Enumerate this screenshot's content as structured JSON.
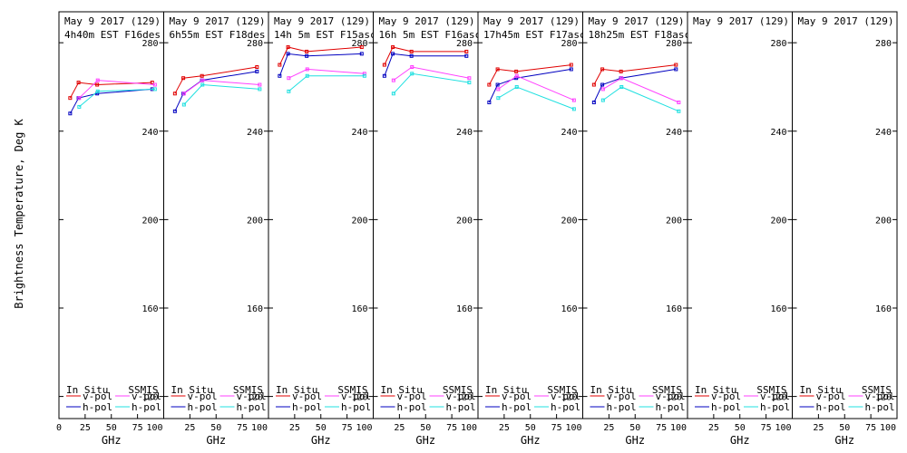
{
  "figure": {
    "ylabel": "Brightness Temperature, Deg K",
    "xlabel": "GHz"
  },
  "legend": {
    "in_situ_title": "In Situ",
    "ssmis_title": "SSMIS",
    "vpol_label": "v-pol",
    "hpol_label": "h-pol"
  },
  "colors": {
    "in_situ_v": "#e00000",
    "in_situ_h": "#0000c0",
    "ssmis_v": "#ff40ff",
    "ssmis_h": "#20e0e0",
    "axis": "#000000"
  },
  "chart_data": [
    {
      "type": "line",
      "title": "May 9 2017 (129)",
      "subtitle": "4h40m EST F16des",
      "xlim": [
        0,
        100
      ],
      "ylim": [
        110,
        294
      ],
      "xticks": [
        0,
        25,
        50,
        75,
        100
      ],
      "yticks": [
        120,
        160,
        200,
        240,
        280
      ],
      "series": [
        {
          "key": "in_situ_v",
          "x": [
            10.7,
            18.7,
            36.5,
            89
          ],
          "y": [
            255,
            262,
            261,
            262
          ]
        },
        {
          "key": "in_situ_h",
          "x": [
            10.7,
            18.7,
            36.5,
            89
          ],
          "y": [
            248,
            255,
            257,
            259
          ]
        },
        {
          "key": "ssmis_v",
          "x": [
            19.35,
            37,
            91.65
          ],
          "y": [
            255,
            263,
            261
          ]
        },
        {
          "key": "ssmis_h",
          "x": [
            19.35,
            37,
            91.65
          ],
          "y": [
            251,
            258,
            259
          ]
        }
      ]
    },
    {
      "type": "line",
      "title": "May 9 2017 (129)",
      "subtitle": "6h55m EST F18des",
      "xlim": [
        0,
        100
      ],
      "ylim": [
        110,
        294
      ],
      "xticks": [
        0,
        25,
        50,
        75,
        100
      ],
      "yticks": [
        120,
        160,
        200,
        240,
        280
      ],
      "series": [
        {
          "key": "in_situ_v",
          "x": [
            10.7,
            18.7,
            36.5,
            89
          ],
          "y": [
            257,
            264,
            265,
            269
          ]
        },
        {
          "key": "in_situ_h",
          "x": [
            10.7,
            18.7,
            36.5,
            89
          ],
          "y": [
            249,
            257,
            263,
            267
          ]
        },
        {
          "key": "ssmis_v",
          "x": [
            19.35,
            37,
            91.65
          ],
          "y": [
            257,
            263,
            261
          ]
        },
        {
          "key": "ssmis_h",
          "x": [
            19.35,
            37,
            91.65
          ],
          "y": [
            252,
            261,
            259
          ]
        }
      ]
    },
    {
      "type": "line",
      "title": "May 9 2017 (129)",
      "subtitle": "14h 5m EST F15asc",
      "xlim": [
        0,
        100
      ],
      "ylim": [
        110,
        294
      ],
      "xticks": [
        0,
        25,
        50,
        75,
        100
      ],
      "yticks": [
        120,
        160,
        200,
        240,
        280
      ],
      "series": [
        {
          "key": "in_situ_v",
          "x": [
            10.7,
            18.7,
            36.5,
            89
          ],
          "y": [
            270,
            278,
            276,
            278
          ]
        },
        {
          "key": "in_situ_h",
          "x": [
            10.7,
            18.7,
            36.5,
            89
          ],
          "y": [
            265,
            275,
            274,
            275
          ]
        },
        {
          "key": "ssmis_v",
          "x": [
            19.35,
            37,
            91.65
          ],
          "y": [
            264,
            268,
            266
          ]
        },
        {
          "key": "ssmis_h",
          "x": [
            19.35,
            37,
            91.65
          ],
          "y": [
            258,
            265,
            265
          ]
        }
      ]
    },
    {
      "type": "line",
      "title": "May 9 2017 (129)",
      "subtitle": "16h 5m EST F16asc",
      "xlim": [
        0,
        100
      ],
      "ylim": [
        110,
        294
      ],
      "xticks": [
        0,
        25,
        50,
        75,
        100
      ],
      "yticks": [
        120,
        160,
        200,
        240,
        280
      ],
      "series": [
        {
          "key": "in_situ_v",
          "x": [
            10.7,
            18.7,
            36.5,
            89
          ],
          "y": [
            270,
            278,
            276,
            276
          ]
        },
        {
          "key": "in_situ_h",
          "x": [
            10.7,
            18.7,
            36.5,
            89
          ],
          "y": [
            265,
            275,
            274,
            274
          ]
        },
        {
          "key": "ssmis_v",
          "x": [
            19.35,
            37,
            91.65
          ],
          "y": [
            263,
            269,
            264
          ]
        },
        {
          "key": "ssmis_h",
          "x": [
            19.35,
            37,
            91.65
          ],
          "y": [
            257,
            266,
            262
          ]
        }
      ]
    },
    {
      "type": "line",
      "title": "May 9 2017 (129)",
      "subtitle": "17h45m EST F17asc",
      "xlim": [
        0,
        100
      ],
      "ylim": [
        110,
        294
      ],
      "xticks": [
        0,
        25,
        50,
        75,
        100
      ],
      "yticks": [
        120,
        160,
        200,
        240,
        280
      ],
      "series": [
        {
          "key": "in_situ_v",
          "x": [
            10.7,
            18.7,
            36.5,
            89
          ],
          "y": [
            261,
            268,
            267,
            270
          ]
        },
        {
          "key": "in_situ_h",
          "x": [
            10.7,
            18.7,
            36.5,
            89
          ],
          "y": [
            253,
            261,
            264,
            268
          ]
        },
        {
          "key": "ssmis_v",
          "x": [
            19.35,
            37,
            91.65
          ],
          "y": [
            259,
            265,
            254
          ]
        },
        {
          "key": "ssmis_h",
          "x": [
            19.35,
            37,
            91.65
          ],
          "y": [
            255,
            260,
            250
          ]
        }
      ]
    },
    {
      "type": "line",
      "title": "May 9 2017 (129)",
      "subtitle": "18h25m EST F18asc",
      "xlim": [
        0,
        100
      ],
      "ylim": [
        110,
        294
      ],
      "xticks": [
        0,
        25,
        50,
        75,
        100
      ],
      "yticks": [
        120,
        160,
        200,
        240,
        280
      ],
      "series": [
        {
          "key": "in_situ_v",
          "x": [
            10.7,
            18.7,
            36.5,
            89
          ],
          "y": [
            261,
            268,
            267,
            270
          ]
        },
        {
          "key": "in_situ_h",
          "x": [
            10.7,
            18.7,
            36.5,
            89
          ],
          "y": [
            253,
            261,
            264,
            268
          ]
        },
        {
          "key": "ssmis_v",
          "x": [
            19.35,
            37,
            91.65
          ],
          "y": [
            259,
            264,
            253
          ]
        },
        {
          "key": "ssmis_h",
          "x": [
            19.35,
            37,
            91.65
          ],
          "y": [
            254,
            260,
            249
          ]
        }
      ]
    },
    {
      "type": "line",
      "title": "May 9 2017 (129)",
      "subtitle": "",
      "xlim": [
        0,
        100
      ],
      "ylim": [
        110,
        294
      ],
      "xticks": [
        0,
        25,
        50,
        75,
        100
      ],
      "yticks": [
        120,
        160,
        200,
        240,
        280
      ],
      "series": []
    },
    {
      "type": "line",
      "title": "May 9 2017 (129)",
      "subtitle": "",
      "xlim": [
        0,
        100
      ],
      "ylim": [
        110,
        294
      ],
      "xticks": [
        0,
        25,
        50,
        75,
        100
      ],
      "yticks": [
        120,
        160,
        200,
        240,
        280
      ],
      "series": []
    }
  ]
}
